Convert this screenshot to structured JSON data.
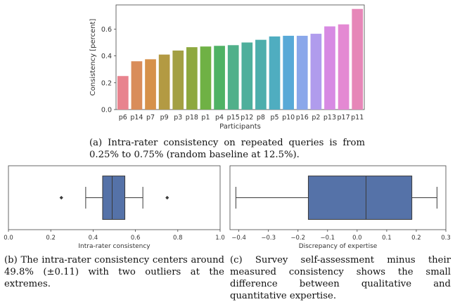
{
  "figure_a": {
    "caption": "(a) Intra-rater consistency on repeated queries is from 0.25% to 0.75% (random baseline at 12.5%)."
  },
  "figure_b": {
    "caption": "(b) The intra-rater consistency centers around 49.8% (±0.11) with two outliers at the extremes."
  },
  "figure_c": {
    "caption": "(c) Survey self-assessment minus their measured consistency shows the small difference between qualitative and quantitative expertise."
  },
  "chart_data": [
    {
      "type": "bar",
      "xlabel": "Participants",
      "ylabel": "Consistency [percent]",
      "ylim": [
        0,
        0.78
      ],
      "yticks": [
        "0.0",
        "0.2",
        "0.4",
        "0.6"
      ],
      "grid": false,
      "categories": [
        "p6",
        "p14",
        "p7",
        "p9",
        "p3",
        "p18",
        "p1",
        "p4",
        "p15",
        "p12",
        "p8",
        "p5",
        "p10",
        "p16",
        "p2",
        "p13",
        "p17",
        "p11"
      ],
      "values": [
        0.25,
        0.36,
        0.375,
        0.41,
        0.44,
        0.465,
        0.47,
        0.475,
        0.48,
        0.5,
        0.52,
        0.545,
        0.55,
        0.55,
        0.565,
        0.62,
        0.635,
        0.75
      ],
      "colors": [
        "#e8838e",
        "#d98d5a",
        "#d6914a",
        "#b39a43",
        "#a3a043",
        "#8ea83f",
        "#6fb145",
        "#4fb265",
        "#50b08a",
        "#4eaf9c",
        "#4daeac",
        "#4fadc0",
        "#58a9d7",
        "#8aa7ea",
        "#b09ced",
        "#d78ae3",
        "#e489d3",
        "#e687b8"
      ]
    },
    {
      "type": "box",
      "xlabel": "Intra-rater consistency",
      "xlim": [
        0,
        1
      ],
      "xticks": [
        "0.0",
        "0.2",
        "0.4",
        "0.6",
        "0.8",
        "1.0"
      ],
      "whisker_low": 0.365,
      "q1": 0.445,
      "median": 0.49,
      "q3": 0.55,
      "whisker_high": 0.635,
      "outliers": [
        0.25,
        0.75
      ],
      "color": "#5572a8"
    },
    {
      "type": "box",
      "xlabel": "Discrepancy of expertise",
      "xlim": [
        -0.43,
        0.3
      ],
      "xticks": [
        "−0.4",
        "−0.3",
        "−0.2",
        "−0.1",
        "0.0",
        "0.1",
        "0.2",
        "0.3"
      ],
      "whisker_low": -0.41,
      "q1": -0.165,
      "median": 0.03,
      "q3": 0.185,
      "whisker_high": 0.27,
      "outliers": [],
      "color": "#5572a8"
    }
  ]
}
